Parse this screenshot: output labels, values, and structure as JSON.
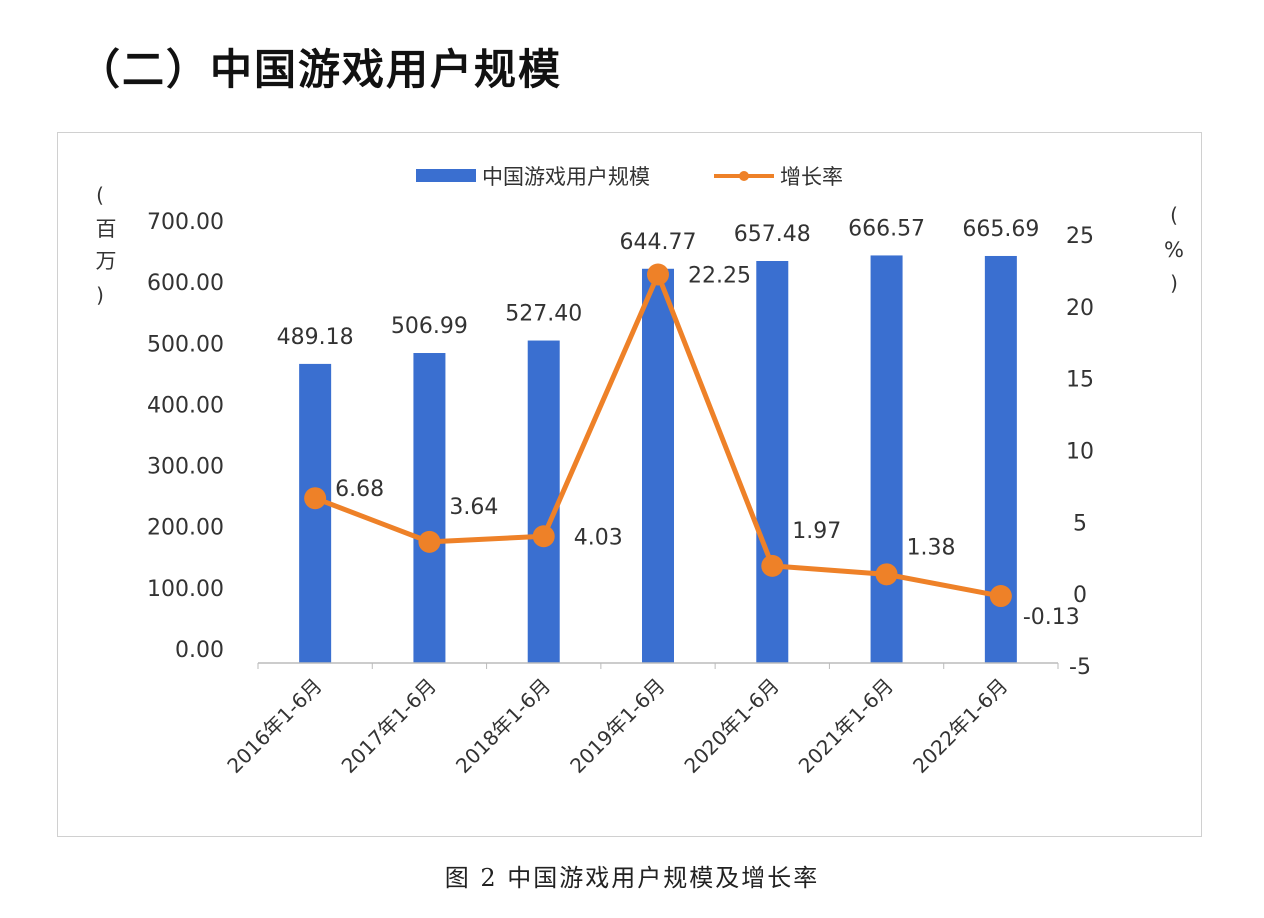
{
  "heading": "（二）中国游戏用户规模",
  "caption": "图 2 中国游戏用户规模及增长率",
  "chart_data": {
    "type": "bar+line",
    "categories": [
      "2016年1-6月",
      "2017年1-6月",
      "2018年1-6月",
      "2019年1-6月",
      "2020年1-6月",
      "2021年1-6月",
      "2022年1-6月"
    ],
    "series": [
      {
        "name": "中国游戏用户规模",
        "type": "bar",
        "axis": "left",
        "color": "#3a6fd0",
        "values": [
          489.18,
          506.99,
          527.4,
          644.77,
          657.48,
          666.57,
          665.69
        ],
        "labels": [
          "489.18",
          "506.99",
          "527.40",
          "644.77",
          "657.48",
          "666.57",
          "665.69"
        ]
      },
      {
        "name": "增长率",
        "type": "line",
        "axis": "right",
        "color": "#ee8128",
        "values": [
          6.68,
          3.64,
          4.03,
          22.25,
          1.97,
          1.38,
          -0.13
        ],
        "labels": [
          "6.68",
          "3.64",
          "4.03",
          "22.25",
          "1.97",
          "1.38",
          "-0.13"
        ]
      }
    ],
    "ylabel_left": "（百万）",
    "ylabel_right": "（%）",
    "ylim_left": [
      0,
      700
    ],
    "yticks_left": [
      "0.00",
      "100.00",
      "200.00",
      "300.00",
      "400.00",
      "500.00",
      "600.00",
      "700.00"
    ],
    "ylim_right": [
      -5,
      25
    ],
    "yticks_right": [
      "-5",
      "0",
      "5",
      "10",
      "15",
      "20",
      "25"
    ],
    "grid": false,
    "legend": "top"
  }
}
